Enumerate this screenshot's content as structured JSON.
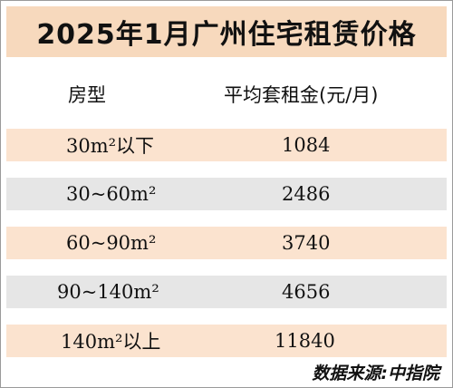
{
  "title": "2025年1月广州住宅租赁价格",
  "table": {
    "headers": [
      "房型",
      "平均套租金(元/月)"
    ],
    "rows": [
      {
        "type": "30m²以下",
        "rent": "1084"
      },
      {
        "type": "30~60m²",
        "rent": "2486"
      },
      {
        "type": "60~90m²",
        "rent": "3740"
      },
      {
        "type": "90~140m²",
        "rent": "4656"
      },
      {
        "type": "140m²以上",
        "rent": "11840"
      }
    ]
  },
  "source": "数据来源:中指院",
  "colors": {
    "title_bg": "#f7d9bd",
    "row_peach": "#fbe3cf",
    "row_gray": "#e6e6e6"
  }
}
